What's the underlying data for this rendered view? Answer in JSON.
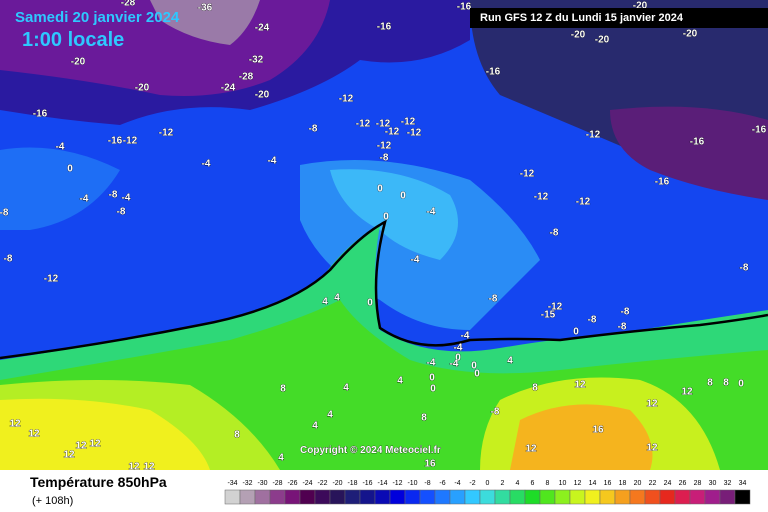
{
  "header": {
    "date": "Samedi 20 janvier 2024",
    "time": "1:00 locale",
    "run": "Run GFS 12 Z du Lundi 15 janvier 2024"
  },
  "map": {
    "copyright": "Copyright © 2024 Meteociel.fr",
    "labels": [
      -28,
      -36,
      -24,
      -20,
      -32,
      -28,
      -24,
      -20,
      -20,
      -16,
      -12,
      -8,
      -12,
      -12,
      -12,
      -12,
      -12,
      -12,
      -8,
      -16,
      -12,
      -12,
      -4,
      0,
      -4,
      -4,
      -8,
      -4,
      -8,
      -4,
      -8,
      -8,
      -12,
      0,
      0,
      -4,
      0,
      -4,
      4,
      4,
      0,
      -8,
      -12,
      -15,
      -8,
      -8,
      -8,
      0,
      -4,
      -4,
      0,
      -4,
      -4,
      0,
      0,
      4,
      0,
      0,
      12,
      12,
      12,
      8,
      8,
      0,
      -16,
      -20,
      -16,
      -20,
      -20,
      -20,
      -16,
      -12,
      -16,
      -16,
      -16,
      -12,
      -12,
      -8,
      -12,
      -8,
      -8,
      16,
      16,
      12,
      12,
      12,
      12,
      12,
      12,
      12,
      12,
      8,
      4,
      4,
      4,
      8,
      4,
      8,
      4,
      12,
      8
    ]
  },
  "legend": {
    "title": "Température 850hPa",
    "lead": "(+ 108h)",
    "ticks": [
      -34,
      -32,
      -30,
      -28,
      -26,
      -24,
      -22,
      -20,
      -18,
      -16,
      -14,
      -12,
      -10,
      -8,
      -6,
      -4,
      -2,
      0,
      2,
      4,
      6,
      8,
      10,
      12,
      14,
      16,
      18,
      20,
      22,
      24,
      26,
      28,
      30,
      32,
      34
    ]
  }
}
